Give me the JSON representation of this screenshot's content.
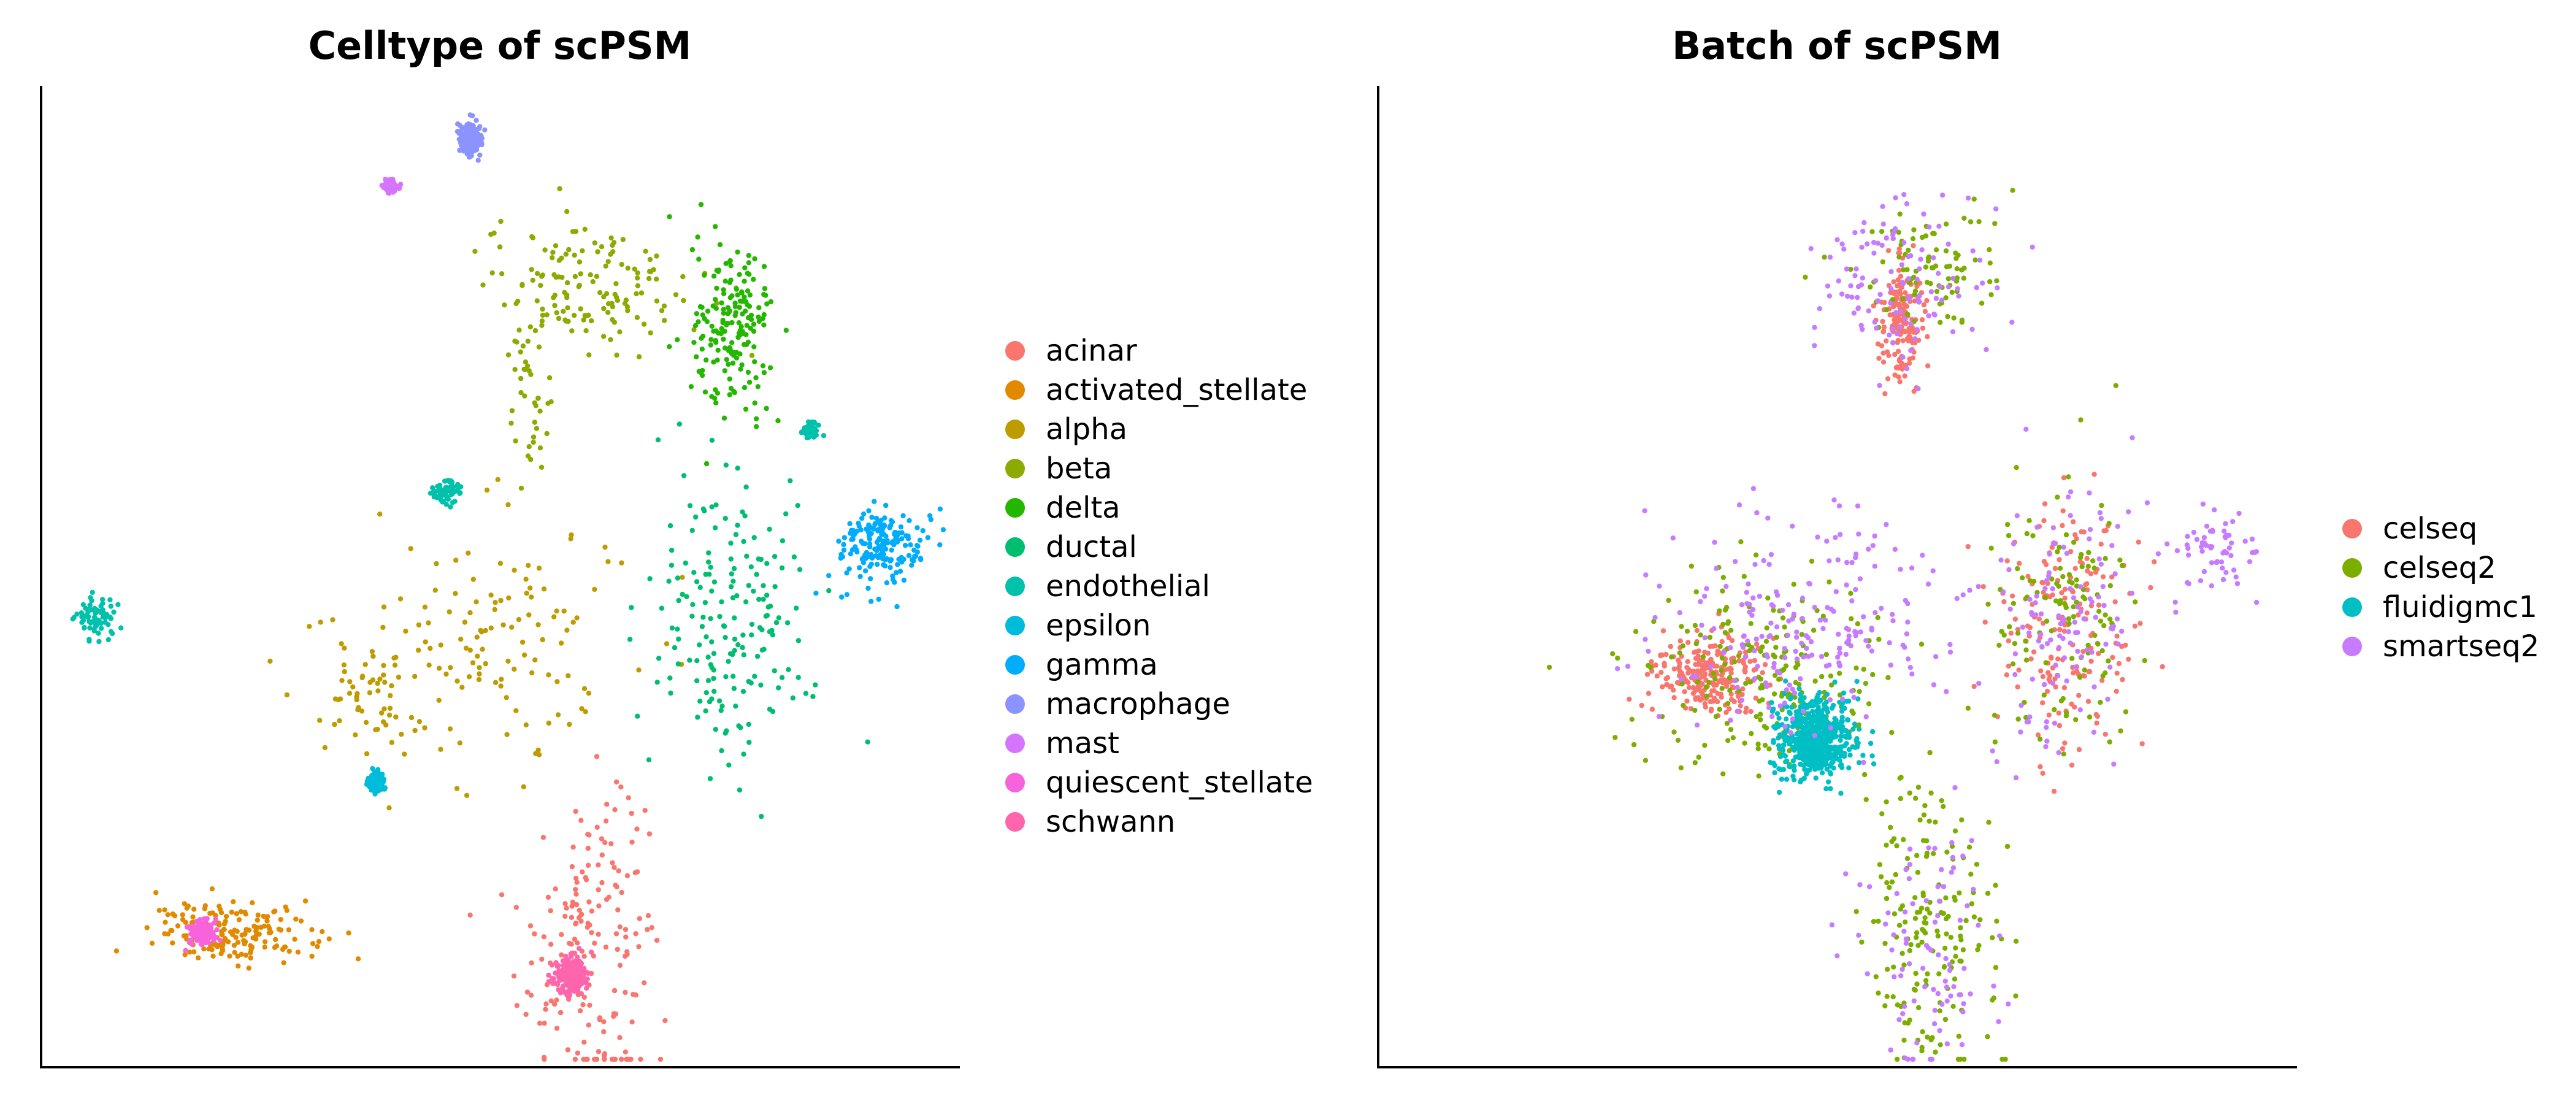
{
  "chart_data": [
    {
      "type": "scatter",
      "title": "Celltype of scPSM",
      "xlabel": "",
      "ylabel": "",
      "ticks": "none",
      "legend_position": "right",
      "series": [
        {
          "name": "acinar",
          "color": "#F8766D",
          "clusters": [
            {
              "center": [
                0.59,
                0.12
              ],
              "spread": [
                0.035,
                0.09
              ],
              "share": 0.8
            },
            {
              "center": [
                0.63,
                0.15
              ],
              "spread": [
                0.02,
                0.06
              ],
              "share": 0.2
            }
          ]
        },
        {
          "name": "activated_stellate",
          "color": "#E18A00",
          "clusters": [
            {
              "center": [
                0.21,
                0.135
              ],
              "spread": [
                0.045,
                0.015
              ],
              "share": 1.0
            }
          ]
        },
        {
          "name": "alpha",
          "color": "#BE9C00",
          "clusters": [
            {
              "center": [
                0.47,
                0.42
              ],
              "spread": [
                0.085,
                0.07
              ],
              "share": 0.8
            },
            {
              "center": [
                0.35,
                0.38
              ],
              "spread": [
                0.035,
                0.025
              ],
              "share": 0.2
            }
          ]
        },
        {
          "name": "beta",
          "color": "#8CAB00",
          "clusters": [
            {
              "center": [
                0.6,
                0.8
              ],
              "spread": [
                0.06,
                0.035
              ],
              "share": 0.75
            },
            {
              "center": [
                0.535,
                0.69
              ],
              "spread": [
                0.012,
                0.05
              ],
              "share": 0.25
            }
          ]
        },
        {
          "name": "delta",
          "color": "#24B700",
          "clusters": [
            {
              "center": [
                0.755,
                0.75
              ],
              "spread": [
                0.022,
                0.045
              ],
              "share": 1.0
            }
          ]
        },
        {
          "name": "ductal",
          "color": "#00BE70",
          "clusters": [
            {
              "center": [
                0.75,
                0.46
              ],
              "spread": [
                0.045,
                0.075
              ],
              "share": 1.0
            }
          ]
        },
        {
          "name": "endothelial",
          "color": "#00C1AB",
          "clusters": [
            {
              "center": [
                0.06,
                0.46
              ],
              "spread": [
                0.012,
                0.012
              ],
              "share": 0.4
            },
            {
              "center": [
                0.44,
                0.585
              ],
              "spread": [
                0.01,
                0.006
              ],
              "share": 0.3
            },
            {
              "center": [
                0.84,
                0.65
              ],
              "spread": [
                0.004,
                0.004
              ],
              "share": 0.3
            }
          ]
        },
        {
          "name": "epsilon",
          "color": "#00BBDA",
          "clusters": [
            {
              "center": [
                0.365,
                0.29
              ],
              "spread": [
                0.004,
                0.004
              ],
              "share": 1.0
            }
          ]
        },
        {
          "name": "gamma",
          "color": "#00ACFC",
          "clusters": [
            {
              "center": [
                0.92,
                0.53
              ],
              "spread": [
                0.025,
                0.02
              ],
              "share": 1.0
            }
          ]
        },
        {
          "name": "macrophage",
          "color": "#8B93FF",
          "clusters": [
            {
              "center": [
                0.468,
                0.95
              ],
              "spread": [
                0.006,
                0.008
              ],
              "share": 1.0
            }
          ]
        },
        {
          "name": "mast",
          "color": "#D575FE",
          "clusters": [
            {
              "center": [
                0.38,
                0.9
              ],
              "spread": [
                0.003,
                0.003
              ],
              "share": 1.0
            }
          ]
        },
        {
          "name": "quiescent_stellate",
          "color": "#F962DD",
          "clusters": [
            {
              "center": [
                0.175,
                0.135
              ],
              "spread": [
                0.006,
                0.006
              ],
              "share": 1.0
            }
          ]
        },
        {
          "name": "schwann",
          "color": "#FF65AC",
          "clusters": [
            {
              "center": [
                0.58,
                0.09
              ],
              "spread": [
                0.01,
                0.01
              ],
              "share": 1.0
            }
          ]
        }
      ]
    },
    {
      "type": "scatter",
      "title": "Batch of scPSM",
      "xlabel": "",
      "ylabel": "",
      "ticks": "none",
      "legend_position": "right",
      "series": [
        {
          "name": "celseq",
          "color": "#F8766D",
          "clusters": [
            {
              "center": [
                0.36,
                0.4
              ],
              "spread": [
                0.03,
                0.02
              ],
              "share": 0.4
            },
            {
              "center": [
                0.75,
                0.45
              ],
              "spread": [
                0.035,
                0.06
              ],
              "share": 0.3
            },
            {
              "center": [
                0.57,
                0.76
              ],
              "spread": [
                0.012,
                0.03
              ],
              "share": 0.3
            }
          ]
        },
        {
          "name": "celseq2",
          "color": "#7CAE00",
          "clusters": [
            {
              "center": [
                0.42,
                0.4
              ],
              "spread": [
                0.07,
                0.05
              ],
              "share": 0.35
            },
            {
              "center": [
                0.6,
                0.14
              ],
              "spread": [
                0.04,
                0.08
              ],
              "share": 0.3
            },
            {
              "center": [
                0.75,
                0.47
              ],
              "spread": [
                0.04,
                0.07
              ],
              "share": 0.2
            },
            {
              "center": [
                0.6,
                0.81
              ],
              "spread": [
                0.04,
                0.03
              ],
              "share": 0.15
            }
          ]
        },
        {
          "name": "fluidigmc1",
          "color": "#00BFC4",
          "clusters": [
            {
              "center": [
                0.475,
                0.335
              ],
              "spread": [
                0.02,
                0.02
              ],
              "share": 1.0
            }
          ]
        },
        {
          "name": "smartseq2",
          "color": "#C77CFF",
          "clusters": [
            {
              "center": [
                0.47,
                0.45
              ],
              "spread": [
                0.08,
                0.06
              ],
              "share": 0.35
            },
            {
              "center": [
                0.57,
                0.8
              ],
              "spread": [
                0.05,
                0.04
              ],
              "share": 0.2
            },
            {
              "center": [
                0.75,
                0.46
              ],
              "spread": [
                0.045,
                0.07
              ],
              "share": 0.2
            },
            {
              "center": [
                0.6,
                0.12
              ],
              "spread": [
                0.04,
                0.08
              ],
              "share": 0.15
            },
            {
              "center": [
                0.92,
                0.53
              ],
              "spread": [
                0.025,
                0.02
              ],
              "share": 0.1
            }
          ]
        }
      ]
    }
  ]
}
